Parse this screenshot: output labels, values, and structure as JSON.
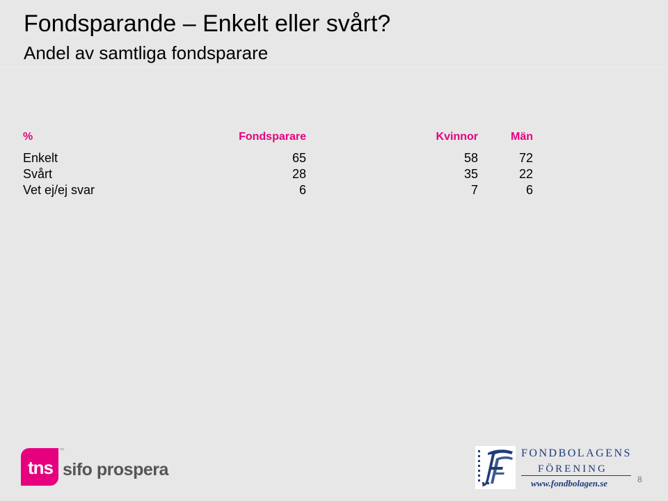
{
  "slide": {
    "title": "Fondsparande – Enkelt eller svårt?",
    "subtitle": "Andel av samtliga fondsparare",
    "page_number": "8"
  },
  "table": {
    "headers": [
      "%",
      "Fondsparare",
      "Kvinnor",
      "Män"
    ],
    "rows": [
      {
        "label": "Enkelt",
        "values": [
          "65",
          "58",
          "72"
        ]
      },
      {
        "label": "Svårt",
        "values": [
          "28",
          "35",
          "22"
        ]
      },
      {
        "label": "Vet ej/ej svar",
        "values": [
          "6",
          "7",
          "6"
        ]
      }
    ],
    "header_color": "#e6007e"
  },
  "logos": {
    "tns": {
      "mark": "tns",
      "name": "sifo prospera",
      "color": "#e6007e"
    },
    "fondbolagen": {
      "line1": "Fondbolagens",
      "line2": "Förening",
      "url": "www.fondbolagen.se",
      "color": "#1f3c7a"
    }
  }
}
